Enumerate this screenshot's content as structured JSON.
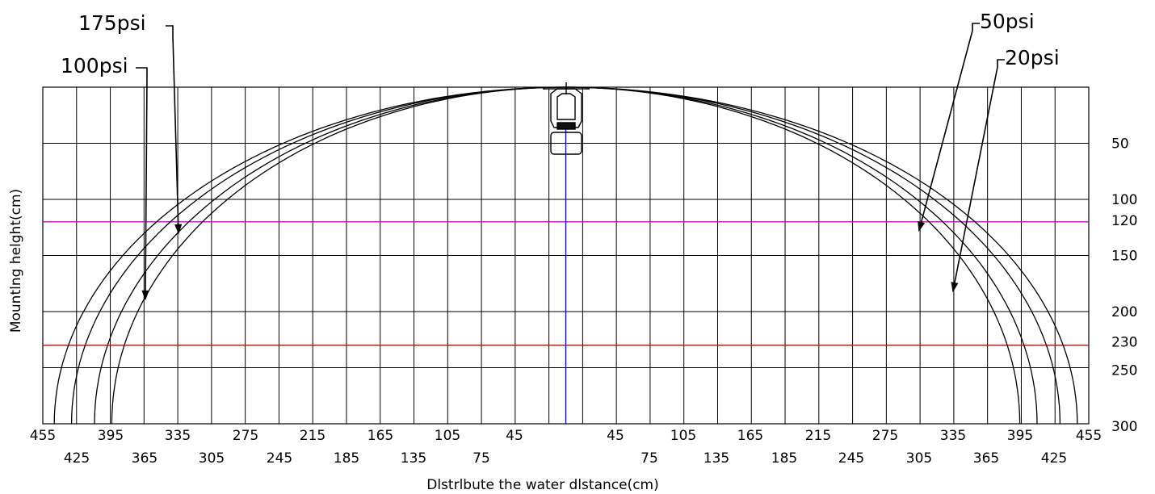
{
  "chart_data": {
    "type": "line",
    "xlabel": "Dlstrlbute the water dlstance(cm)",
    "ylabel": "Mountlng helght(cm)",
    "x_tick_labels_top": [
      "455",
      "395",
      "335",
      "275",
      "215",
      "165",
      "105",
      "45",
      "45",
      "105",
      "165",
      "215",
      "275",
      "335",
      "395",
      "455"
    ],
    "x_tick_labels_bottom": [
      "425",
      "365",
      "305",
      "245",
      "185",
      "135",
      "75",
      "75",
      "135",
      "185",
      "245",
      "305",
      "365",
      "425"
    ],
    "y_ticks": [
      "50",
      "100",
      "120",
      "150",
      "200",
      "230",
      "250",
      "300"
    ],
    "xlim": [
      -455,
      455
    ],
    "ylim": [
      0,
      300
    ],
    "grid": true,
    "reference_lines": [
      {
        "orientation": "horizontal",
        "value": 120,
        "color": "#cc00cc"
      },
      {
        "orientation": "horizontal",
        "value": 230,
        "color": "#dd0000"
      },
      {
        "orientation": "vertical",
        "value": 0,
        "color": "#0000ee"
      }
    ],
    "series": [
      {
        "name": "20psi",
        "reach_at_300": 395
      },
      {
        "name": "50psi",
        "reach_at_300": 410
      },
      {
        "name": "100psi",
        "reach_at_300": 430
      },
      {
        "name": "175psi",
        "reach_at_300": 445
      }
    ],
    "labels": [
      "175psi",
      "100psi",
      "50psi",
      "20psi"
    ]
  }
}
